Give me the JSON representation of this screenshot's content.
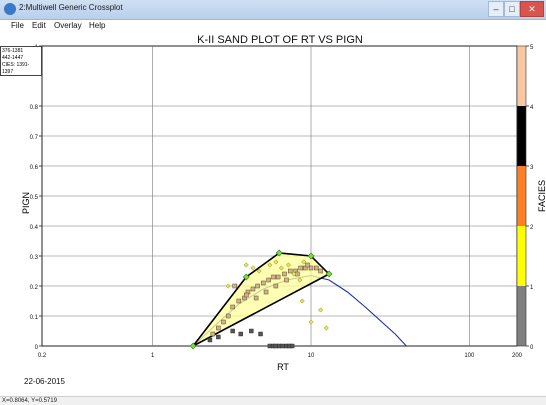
{
  "window": {
    "title": "2:Multiwell Generic Crossplot"
  },
  "menu": [
    "File",
    "Edit",
    "Overlay",
    "Help"
  ],
  "plot": {
    "title": "K-II SAND PLOT OF RT VS PIGN",
    "legend_lines": [
      "376-1381",
      "442-1447",
      "CIES: 1391-1397"
    ],
    "date": "22-06-2015"
  },
  "status": {
    "text": "X=0.8064, Y=0.5719"
  },
  "chart_data": {
    "type": "scatter",
    "title": "K-II SAND PLOT OF RT VS PIGN",
    "xlabel": "RT",
    "ylabel": "PIGN",
    "zlabel": "FACIES",
    "xscale": "log",
    "xlim": [
      0.2,
      200
    ],
    "ylim": [
      0,
      1
    ],
    "xticks": [
      "0.2",
      "1",
      "10",
      "100",
      "200"
    ],
    "yticks": [
      "0",
      "0.1",
      "0.2",
      "0.3",
      "0.4",
      "0.5",
      "0.6",
      "0.7",
      "0.8",
      "1"
    ],
    "zticks": [
      "0",
      "1",
      "2",
      "3",
      "4",
      "5"
    ],
    "colorbar": [
      {
        "from": 0,
        "to": 1,
        "color": "#808080"
      },
      {
        "from": 1,
        "to": 2,
        "color": "#ffff00"
      },
      {
        "from": 2,
        "to": 3,
        "color": "#ff7f27"
      },
      {
        "from": 3,
        "to": 4,
        "color": "#000000"
      },
      {
        "from": 4,
        "to": 5,
        "color": "#f9c8a0"
      }
    ],
    "grid": true,
    "square_points": {
      "color": "#d2b48c",
      "x": [
        2.4,
        2.6,
        2.8,
        3.0,
        3.2,
        3.5,
        3.8,
        4.0,
        4.3,
        4.6,
        5.0,
        5.4,
        5.8,
        6.2,
        6.8,
        7.4,
        8.0,
        8.6,
        9.2,
        10.0,
        10.8,
        11.5,
        3.3,
        3.9,
        4.5,
        5.2,
        6.0,
        7.0,
        8.2,
        9.5
      ],
      "y": [
        0.04,
        0.06,
        0.08,
        0.1,
        0.13,
        0.15,
        0.16,
        0.18,
        0.19,
        0.2,
        0.21,
        0.22,
        0.23,
        0.23,
        0.24,
        0.25,
        0.25,
        0.26,
        0.26,
        0.26,
        0.26,
        0.25,
        0.2,
        0.17,
        0.16,
        0.18,
        0.2,
        0.22,
        0.24,
        0.27
      ]
    },
    "gray_points": {
      "color": "#555555",
      "x": [
        2.3,
        2.6,
        3.2,
        3.6,
        4.2,
        4.8,
        5.5,
        5.8,
        6.0,
        6.3,
        6.6,
        7.0,
        7.3,
        7.6
      ],
      "y": [
        0.02,
        0.03,
        0.05,
        0.04,
        0.05,
        0.04,
        0.0,
        0.0,
        0.0,
        0.0,
        0.0,
        0.0,
        0.0,
        0.0
      ]
    },
    "diamond_points": {
      "color": "#e6e65a",
      "x": [
        3.9,
        4.3,
        4.7,
        5.5,
        6.0,
        6.5,
        7.2,
        7.8,
        8.5,
        9.0,
        3.0,
        11.5,
        10.0,
        12.5,
        8.8
      ],
      "y": [
        0.27,
        0.26,
        0.25,
        0.27,
        0.28,
        0.26,
        0.27,
        0.24,
        0.22,
        0.28,
        0.2,
        0.12,
        0.08,
        0.06,
        0.15
      ]
    },
    "polygon": {
      "x": [
        1.8,
        3.9,
        6.3,
        10.0,
        13.0,
        1.8
      ],
      "y": [
        0.0,
        0.23,
        0.31,
        0.3,
        0.24,
        0.0
      ]
    },
    "curve": {
      "x": [
        1.8,
        2.5,
        3.5,
        5.0,
        7.0,
        10.0,
        13.0,
        17.0,
        22.0,
        28.0,
        34.0,
        40.0
      ],
      "y": [
        0.0,
        0.07,
        0.14,
        0.19,
        0.22,
        0.235,
        0.22,
        0.18,
        0.13,
        0.08,
        0.04,
        0.0
      ]
    }
  }
}
